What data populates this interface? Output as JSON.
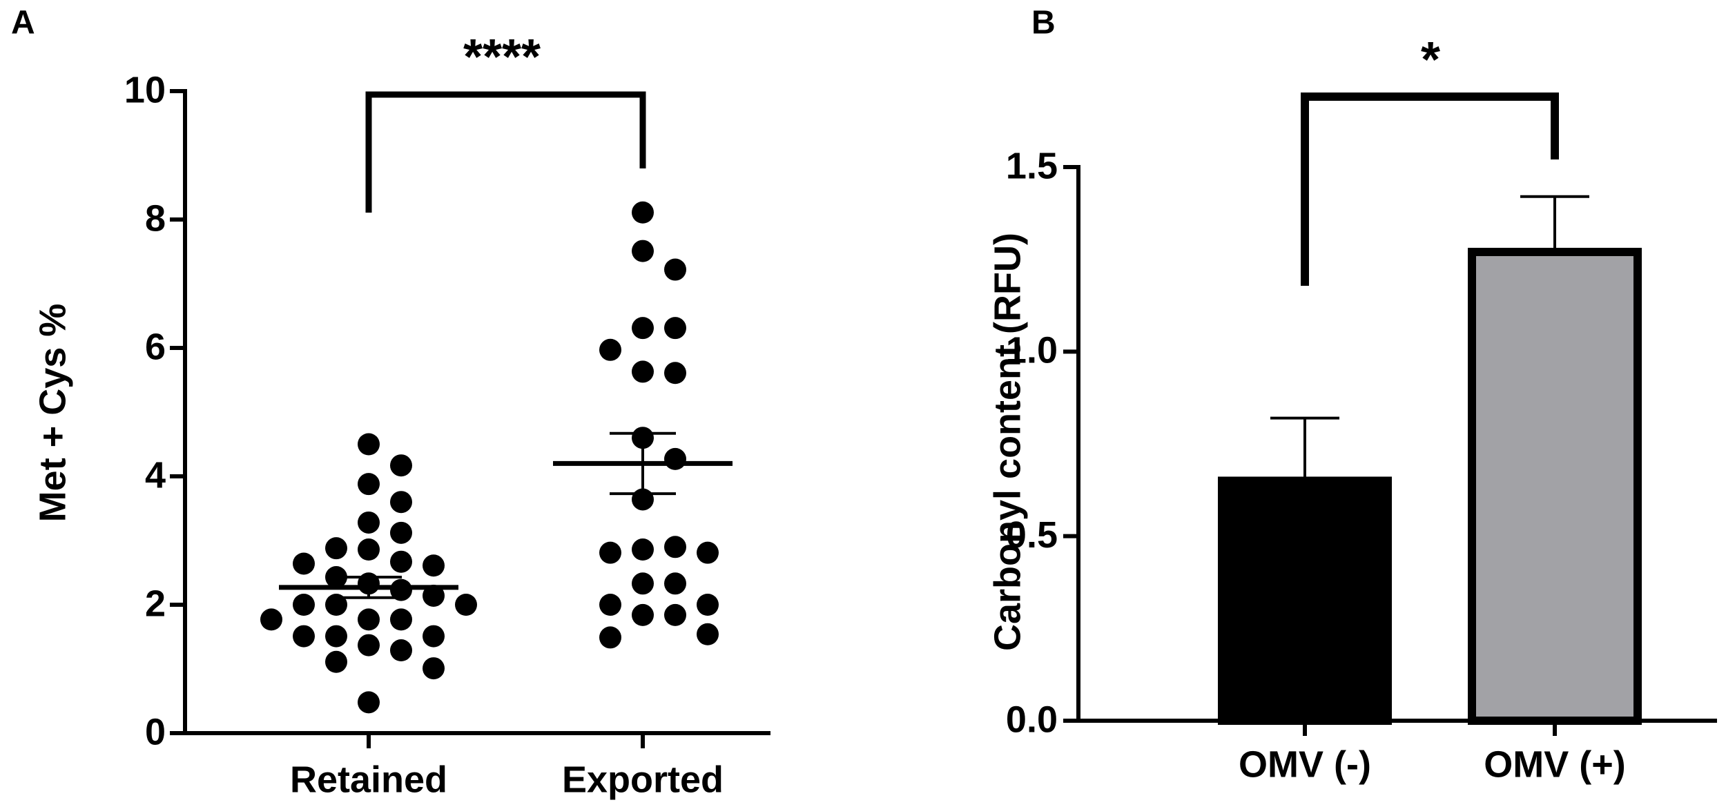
{
  "chart_data": [
    {
      "type": "scatter",
      "panel_label": "A",
      "annotation": "****",
      "y_label": "Met + Cys %",
      "categories": [
        "Retained",
        "Exported"
      ],
      "series": [
        {
          "color": "#000000",
          "mean": 2.27,
          "sem": 0.16,
          "values": [
            4.5,
            4.17,
            3.88,
            3.6,
            3.28,
            3.12,
            2.86,
            2.88,
            2.67,
            2.61,
            2.64,
            2.33,
            2.43,
            2.23,
            2.14,
            2.0,
            2.0,
            2.0,
            1.77,
            1.77,
            1.77,
            1.51,
            1.37,
            1.51,
            1.51,
            1.29,
            1.11,
            1.01,
            0.48
          ]
        },
        {
          "color": "#000000",
          "mean": 4.2,
          "sem": 0.47,
          "values": [
            8.11,
            7.51,
            7.22,
            6.31,
            6.31,
            5.97,
            5.63,
            5.61,
            4.6,
            4.27,
            3.64,
            2.86,
            2.9,
            2.81,
            2.81,
            2.33,
            2.33,
            2.0,
            2.0,
            1.84,
            1.84,
            1.49,
            1.54
          ]
        }
      ],
      "ylim": [
        0,
        10
      ],
      "yticks": [
        0,
        2,
        4,
        6,
        8,
        10
      ]
    },
    {
      "type": "bar",
      "panel_label": "B",
      "annotation": "*",
      "y_label": "Carbonyl content (RFU)",
      "categories": [
        "OMV (-)",
        "OMV (+)"
      ],
      "values": [
        0.65,
        1.27
      ],
      "errors": [
        0.17,
        0.15
      ],
      "colors": [
        "#000000",
        "#a2a2a6"
      ],
      "ylim": [
        0,
        1.5
      ],
      "yticks": [
        {
          "value": 0,
          "label": "0.0"
        },
        0.5,
        {
          "value": 1,
          "label": "1.0"
        },
        1.5
      ]
    }
  ]
}
